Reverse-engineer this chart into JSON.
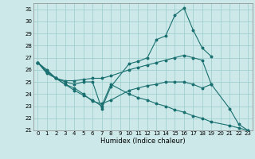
{
  "xlabel": "Humidex (Indice chaleur)",
  "ylabel": "",
  "background_color": "#cce8e8",
  "line_color": "#1a7070",
  "grid_color": "#99cccc",
  "xlim": [
    -0.5,
    23.5
  ],
  "ylim": [
    21,
    31.5
  ],
  "yticks": [
    21,
    22,
    23,
    24,
    25,
    26,
    27,
    28,
    29,
    30,
    31
  ],
  "xticks": [
    0,
    1,
    2,
    3,
    4,
    5,
    6,
    7,
    8,
    9,
    10,
    11,
    12,
    13,
    14,
    15,
    16,
    17,
    18,
    19,
    20,
    21,
    22,
    23
  ],
  "series": [
    {
      "x": [
        0,
        1,
        2,
        3,
        4,
        5,
        6,
        7,
        8,
        10,
        11,
        12,
        13,
        14,
        15,
        16,
        17,
        18,
        19
      ],
      "y": [
        26.6,
        26.0,
        25.3,
        25.0,
        24.8,
        25.0,
        25.0,
        22.8,
        24.6,
        26.5,
        26.7,
        27.0,
        28.5,
        28.8,
        30.5,
        31.1,
        29.3,
        27.8,
        27.1
      ]
    },
    {
      "x": [
        0,
        1,
        2,
        3,
        4,
        5,
        6,
        7,
        8,
        10,
        11,
        12,
        13,
        14,
        15,
        16,
        17,
        18,
        19
      ],
      "y": [
        26.6,
        25.9,
        25.3,
        25.1,
        25.1,
        25.2,
        25.3,
        25.3,
        25.5,
        26.0,
        26.2,
        26.4,
        26.6,
        26.8,
        27.0,
        27.2,
        27.0,
        26.8,
        24.8
      ]
    },
    {
      "x": [
        0,
        1,
        2,
        3,
        4,
        5,
        6,
        7,
        8,
        10,
        11,
        12,
        13,
        14,
        15,
        16,
        17,
        18,
        19,
        21,
        22,
        23
      ],
      "y": [
        26.6,
        25.8,
        25.3,
        24.8,
        24.5,
        24.0,
        23.4,
        23.2,
        23.5,
        24.3,
        24.5,
        24.7,
        24.8,
        25.0,
        25.0,
        25.0,
        24.8,
        24.5,
        24.8,
        22.8,
        21.5,
        21.0
      ]
    },
    {
      "x": [
        0,
        1,
        2,
        3,
        4,
        5,
        6,
        7,
        8,
        10,
        11,
        12,
        13,
        14,
        15,
        16,
        17,
        18,
        19,
        21,
        22,
        23
      ],
      "y": [
        26.6,
        25.7,
        25.3,
        24.8,
        24.3,
        23.9,
        23.5,
        23.0,
        24.8,
        24.0,
        23.7,
        23.5,
        23.2,
        23.0,
        22.7,
        22.5,
        22.2,
        22.0,
        21.7,
        21.4,
        21.2,
        21.0
      ]
    }
  ]
}
